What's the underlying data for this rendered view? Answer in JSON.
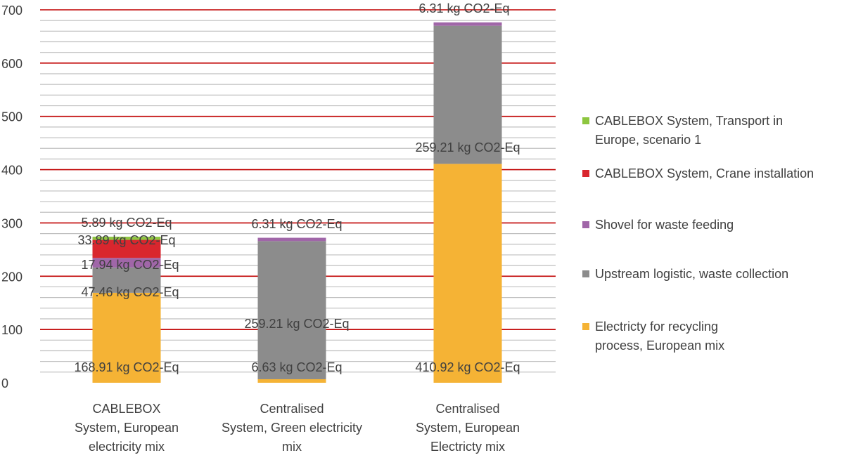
{
  "chart_data": {
    "type": "bar",
    "stacked": true,
    "title": "",
    "xlabel": "",
    "ylabel": "",
    "ylim": [
      0,
      700
    ],
    "major_ticks": [
      0,
      100,
      200,
      300,
      400,
      500,
      600,
      700
    ],
    "minor_step": 20,
    "grid": true,
    "categories": [
      [
        "CABLEBOX",
        "System, European",
        "electricity mix"
      ],
      [
        "Centralised",
        "System, Green electricity",
        "mix"
      ],
      [
        "Centralised",
        "System, European",
        "Electricty mix"
      ]
    ],
    "series": [
      {
        "name": "Electricty for recycling process, European mix",
        "color": "#f5b335",
        "values": [
          168.91,
          6.63,
          410.92
        ],
        "labels": [
          "168.91 kg CO2-Eq",
          "6.63 kg CO2-Eq",
          "410.92 kg CO2-Eq"
        ]
      },
      {
        "name": "Upstream logistic, waste collection",
        "color": "#8c8c8c",
        "values": [
          47.46,
          259.21,
          259.21
        ],
        "labels": [
          "47.46 kg CO2-Eq",
          "259.21 kg CO2-Eq",
          "259.21 kg CO2-Eq"
        ]
      },
      {
        "name": "Shovel for waste feeding",
        "color": "#a066a8",
        "values": [
          17.94,
          6.31,
          6.31
        ],
        "labels": [
          "17.94 kg CO2-Eq",
          "6.31 kg CO2-Eq",
          "6.31 kg CO2-Eq"
        ]
      },
      {
        "name": "CABLEBOX System, Crane installation",
        "color": "#d9262e",
        "values": [
          33.89,
          0,
          0
        ],
        "labels": [
          "33.89 kg CO2-Eq",
          "",
          ""
        ]
      },
      {
        "name": "CABLEBOX System, Transport in Europe, scenario 1",
        "color": "#8dc63f",
        "values": [
          5.89,
          0,
          0
        ],
        "labels": [
          "5.89 kg CO2-Eq",
          "",
          ""
        ]
      }
    ],
    "legend_position": "right",
    "legend": [
      {
        "lines": [
          "CABLEBOX System, Transport in",
          "Europe, scenario 1"
        ],
        "color": "#8dc63f"
      },
      {
        "lines": [
          "CABLEBOX System, Crane installation"
        ],
        "color": "#d9262e"
      },
      {
        "lines": [
          "Shovel for waste feeding"
        ],
        "color": "#a066a8"
      },
      {
        "lines": [
          "Upstream logistic, waste collection"
        ],
        "color": "#8c8c8c"
      },
      {
        "lines": [
          "Electricty for recycling",
          "process, European mix"
        ],
        "color": "#f5b335"
      }
    ],
    "major_grid_color": "#c00000",
    "minor_grid_color": "#bfbfbf"
  }
}
